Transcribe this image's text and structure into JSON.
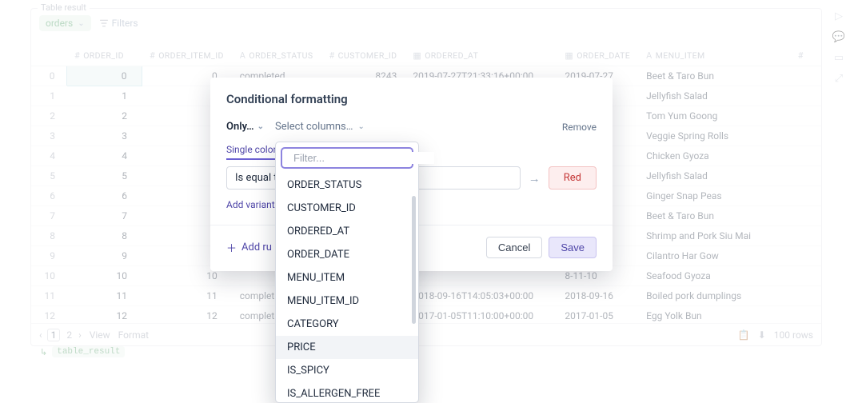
{
  "panel": {
    "legend": "Table result",
    "source_badge": "orders",
    "filters_label": "Filters",
    "result_var": "table_result"
  },
  "footer": {
    "page_current": "1",
    "page_next": "2",
    "view_label": "View",
    "format_label": "Format",
    "row_count": "100 rows"
  },
  "columns": [
    {
      "label": "ORDER_ID",
      "icon": "hash"
    },
    {
      "label": "ORDER_ITEM_ID",
      "icon": "hash"
    },
    {
      "label": "ORDER_STATUS",
      "icon": "text"
    },
    {
      "label": "CUSTOMER_ID",
      "icon": "hash"
    },
    {
      "label": "ORDERED_AT",
      "icon": "cal"
    },
    {
      "label": "ORDER_DATE",
      "icon": "cal"
    },
    {
      "label": "MENU_ITEM",
      "icon": "text"
    }
  ],
  "rows": [
    {
      "n": "0",
      "order_id": "0",
      "item_id": "0",
      "status": "completed",
      "cust": "8243",
      "ordered": "2019-07-27T21:33:16+00:00",
      "odate": "2019-07-27",
      "menu": "Beet & Taro Bun"
    },
    {
      "n": "1",
      "order_id": "1",
      "item_id": "1",
      "status": "",
      "cust": "",
      "ordered": "",
      "odate": "8-05-19",
      "menu": "Jellyfish Salad"
    },
    {
      "n": "2",
      "order_id": "2",
      "item_id": "2",
      "status": "",
      "cust": "",
      "ordered": "",
      "odate": "6-12-20",
      "menu": "Tom Yum Goong"
    },
    {
      "n": "3",
      "order_id": "3",
      "item_id": "3",
      "status": "",
      "cust": "",
      "ordered": "",
      "odate": "9-12-08",
      "menu": "Veggie Spring Rolls"
    },
    {
      "n": "4",
      "order_id": "4",
      "item_id": "4",
      "status": "",
      "cust": "",
      "ordered": "",
      "odate": "7-01-04",
      "menu": "Chicken Gyoza"
    },
    {
      "n": "5",
      "order_id": "5",
      "item_id": "5",
      "status": "",
      "cust": "",
      "ordered": "",
      "odate": "9-11-19",
      "menu": "Jellyfish Salad"
    },
    {
      "n": "6",
      "order_id": "6",
      "item_id": "6",
      "status": "",
      "cust": "",
      "ordered": "",
      "odate": "7-08-13",
      "menu": "Ginger Snap Peas"
    },
    {
      "n": "7",
      "order_id": "7",
      "item_id": "7",
      "status": "",
      "cust": "",
      "ordered": "",
      "odate": "9-06-03",
      "menu": "Beet & Taro Bun"
    },
    {
      "n": "8",
      "order_id": "8",
      "item_id": "8",
      "status": "",
      "cust": "",
      "ordered": "",
      "odate": "7-05-17",
      "menu": "Shrimp and Pork Siu Mai"
    },
    {
      "n": "9",
      "order_id": "9",
      "item_id": "9",
      "status": "",
      "cust": "",
      "ordered": "",
      "odate": "6-07-11",
      "menu": "Cilantro Har Gow"
    },
    {
      "n": "10",
      "order_id": "10",
      "item_id": "10",
      "status": "",
      "cust": "",
      "ordered": "",
      "odate": "8-11-10",
      "menu": "Seafood Gyoza"
    },
    {
      "n": "11",
      "order_id": "11",
      "item_id": "11",
      "status": "completed",
      "cust": "11916",
      "ordered": "2018-09-16T14:05:03+00:00",
      "odate": "2018-09-16",
      "menu": "Boiled pork dumplings"
    },
    {
      "n": "12",
      "order_id": "12",
      "item_id": "12",
      "status": "completed",
      "cust": "11606",
      "ordered": "2017-01-05T11:10:00+00:00",
      "odate": "2017-01-05",
      "menu": "Egg Yolk Bun"
    }
  ],
  "modal": {
    "title": "Conditional formatting",
    "only_label": "Only…",
    "select_columns_label": "Select columns…",
    "remove_label": "Remove",
    "tab_single_color": "Single color",
    "condition_op": "Is equal t",
    "result_color_label": "Red",
    "add_variant_label": "Add variant",
    "add_rule_label": "Add ru",
    "cancel_label": "Cancel",
    "save_label": "Save"
  },
  "dropdown": {
    "filter_placeholder": "Filter...",
    "options": [
      "ORDER_STATUS",
      "CUSTOMER_ID",
      "ORDERED_AT",
      "ORDER_DATE",
      "MENU_ITEM",
      "MENU_ITEM_ID",
      "CATEGORY",
      "PRICE",
      "IS_SPICY",
      "IS_ALLERGEN_FREE"
    ],
    "hover_index": 7
  },
  "style": {
    "colors": {
      "border": "#e5e7eb",
      "text_muted": "#9ca3af",
      "text": "#374151",
      "accent": "#4f46a8",
      "accent_light": "#e9e7fb",
      "green_bg": "#e8f2ec",
      "green_fg": "#4b9d63",
      "red_bg": "#fdeeee",
      "red_border": "#f3c3c3",
      "red_fg": "#c53838",
      "focus_ring": "#8d84df",
      "row_sel": "#e8f2f4"
    }
  }
}
